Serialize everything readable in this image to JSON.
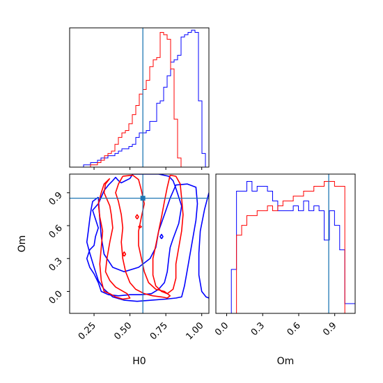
{
  "chart_data": [
    {
      "type": "histogram",
      "panel": "H0 marginal",
      "truth": 0.59,
      "xlim": [
        0.08,
        1.05
      ],
      "series": [
        {
          "color": "#0000ff",
          "values": [
            0,
            0,
            0,
            0,
            1,
            1,
            2,
            2,
            3,
            4,
            4,
            5,
            5,
            6,
            7,
            8,
            8,
            9,
            10,
            13,
            15,
            15,
            16,
            20,
            20,
            28,
            29,
            35,
            40,
            46,
            47,
            49,
            57,
            58,
            59,
            60,
            59,
            29,
            6,
            0
          ]
        },
        {
          "color": "#ff0000",
          "values": [
            0,
            0,
            0,
            0,
            0,
            0,
            1,
            1,
            2,
            3,
            5,
            6,
            7,
            10,
            13,
            15,
            16,
            19,
            23,
            27,
            32,
            34,
            38,
            44,
            47,
            48,
            59,
            58,
            56,
            43,
            21,
            4,
            0,
            0,
            0,
            0,
            0,
            0,
            0,
            0
          ]
        }
      ]
    },
    {
      "type": "contour",
      "panel": "H0 vs Om",
      "xlabel": "H0",
      "ylabel": "Om",
      "xlim": [
        0.08,
        1.05
      ],
      "ylim": [
        -0.2,
        1.07
      ],
      "xticks": [
        "0.25",
        "0.50",
        "0.75",
        "1.00"
      ],
      "yticks": [
        "0.0",
        "0.3",
        "0.6",
        "0.9"
      ],
      "truth": {
        "H0": 0.59,
        "Om": 0.85
      },
      "series": [
        {
          "color": "#0000ff",
          "contours": [
            [
              [
                0.52,
                1.07
              ],
              [
                0.5,
                1.03
              ],
              [
                0.47,
                1.01
              ],
              [
                0.44,
                0.99
              ],
              [
                0.42,
                1.01
              ],
              [
                0.4,
                1.04
              ],
              [
                0.38,
                1.01
              ],
              [
                0.35,
                0.97
              ],
              [
                0.32,
                0.92
              ],
              [
                0.3,
                0.86
              ],
              [
                0.28,
                0.8
              ],
              [
                0.24,
                0.74
              ],
              [
                0.26,
                0.66
              ],
              [
                0.28,
                0.58
              ],
              [
                0.26,
                0.5
              ],
              [
                0.25,
                0.42
              ],
              [
                0.22,
                0.38
              ],
              [
                0.2,
                0.3
              ],
              [
                0.22,
                0.22
              ],
              [
                0.25,
                0.16
              ],
              [
                0.28,
                0.08
              ],
              [
                0.3,
                0.0
              ],
              [
                0.35,
                -0.03
              ],
              [
                0.42,
                -0.04
              ],
              [
                0.5,
                -0.03
              ],
              [
                0.58,
                -0.03
              ],
              [
                0.65,
                -0.02
              ],
              [
                0.7,
                0.02
              ],
              [
                0.74,
                0.08
              ],
              [
                0.76,
                0.18
              ],
              [
                0.77,
                0.3
              ],
              [
                0.78,
                0.4
              ],
              [
                0.8,
                0.48
              ],
              [
                0.82,
                0.55
              ],
              [
                0.84,
                0.62
              ],
              [
                0.85,
                0.7
              ],
              [
                0.86,
                0.78
              ],
              [
                0.84,
                0.86
              ],
              [
                0.82,
                0.94
              ],
              [
                0.8,
                1.01
              ],
              [
                0.77,
                1.05
              ],
              [
                0.7,
                1.07
              ],
              [
                0.6,
                1.07
              ],
              [
                0.52,
                1.07
              ]
            ],
            [
              [
                0.28,
                0.86
              ],
              [
                0.24,
                0.82
              ],
              [
                0.23,
                0.75
              ],
              [
                0.22,
                0.66
              ],
              [
                0.21,
                0.55
              ],
              [
                0.2,
                0.45
              ],
              [
                0.22,
                0.35
              ],
              [
                0.25,
                0.22
              ],
              [
                0.28,
                0.1
              ],
              [
                0.32,
                0.02
              ],
              [
                0.38,
                -0.05
              ],
              [
                0.46,
                -0.08
              ],
              [
                0.55,
                -0.09
              ],
              [
                0.65,
                -0.08
              ],
              [
                0.75,
                -0.07
              ],
              [
                0.82,
                -0.06
              ],
              [
                0.86,
                -0.05
              ],
              [
                0.88,
                0.05
              ],
              [
                0.9,
                0.2
              ],
              [
                0.92,
                0.35
              ],
              [
                0.94,
                0.5
              ],
              [
                0.96,
                0.65
              ],
              [
                0.97,
                0.8
              ],
              [
                0.96,
                0.95
              ],
              [
                0.9,
                0.98
              ],
              [
                0.82,
                0.97
              ],
              [
                0.78,
                0.85
              ],
              [
                0.74,
                0.7
              ],
              [
                0.7,
                0.55
              ],
              [
                0.68,
                0.4
              ],
              [
                0.64,
                0.3
              ],
              [
                0.56,
                0.22
              ],
              [
                0.46,
                0.18
              ],
              [
                0.38,
                0.22
              ],
              [
                0.32,
                0.34
              ],
              [
                0.3,
                0.5
              ],
              [
                0.29,
                0.66
              ],
              [
                0.28,
                0.86
              ]
            ],
            [
              [
                1.05,
                0.9
              ],
              [
                1.02,
                0.75
              ],
              [
                0.99,
                0.55
              ],
              [
                0.98,
                0.35
              ],
              [
                0.98,
                0.15
              ],
              [
                1.0,
                0.0
              ],
              [
                1.03,
                -0.05
              ],
              [
                1.05,
                -0.06
              ]
            ],
            [
              [
                0.72,
                0.48
              ],
              [
                0.73,
                0.5
              ],
              [
                0.72,
                0.52
              ],
              [
                0.71,
                0.5
              ],
              [
                0.72,
                0.48
              ]
            ]
          ]
        },
        {
          "color": "#ff0000",
          "contours": [
            [
              [
                0.36,
                1.03
              ],
              [
                0.33,
                0.98
              ],
              [
                0.32,
                0.9
              ],
              [
                0.34,
                0.84
              ],
              [
                0.36,
                0.78
              ],
              [
                0.37,
                0.7
              ],
              [
                0.38,
                0.58
              ],
              [
                0.36,
                0.45
              ],
              [
                0.34,
                0.3
              ],
              [
                0.33,
                0.18
              ],
              [
                0.36,
                0.1
              ],
              [
                0.4,
                0.04
              ],
              [
                0.44,
                0.01
              ],
              [
                0.48,
                -0.02
              ],
              [
                0.5,
                -0.06
              ],
              [
                0.45,
                -0.07
              ],
              [
                0.4,
                -0.05
              ],
              [
                0.36,
                -0.02
              ],
              [
                0.32,
                0.0
              ],
              [
                0.3,
                0.1
              ],
              [
                0.29,
                0.25
              ],
              [
                0.3,
                0.4
              ],
              [
                0.31,
                0.55
              ],
              [
                0.29,
                0.68
              ],
              [
                0.28,
                0.8
              ],
              [
                0.3,
                0.9
              ],
              [
                0.32,
                0.98
              ],
              [
                0.36,
                1.03
              ]
            ],
            [
              [
                0.45,
                1.05
              ],
              [
                0.42,
                0.98
              ],
              [
                0.4,
                0.9
              ],
              [
                0.42,
                0.82
              ],
              [
                0.44,
                0.7
              ],
              [
                0.45,
                0.58
              ],
              [
                0.44,
                0.45
              ],
              [
                0.45,
                0.3
              ],
              [
                0.47,
                0.18
              ],
              [
                0.5,
                0.08
              ],
              [
                0.54,
                0.02
              ],
              [
                0.6,
                -0.02
              ],
              [
                0.66,
                -0.04
              ],
              [
                0.72,
                -0.05
              ],
              [
                0.76,
                -0.06
              ],
              [
                0.78,
                -0.04
              ],
              [
                0.74,
                0.0
              ],
              [
                0.68,
                0.02
              ],
              [
                0.63,
                0.08
              ],
              [
                0.6,
                0.18
              ],
              [
                0.58,
                0.3
              ],
              [
                0.56,
                0.42
              ],
              [
                0.56,
                0.55
              ],
              [
                0.58,
                0.68
              ],
              [
                0.6,
                0.8
              ],
              [
                0.58,
                0.92
              ],
              [
                0.56,
                1.02
              ],
              [
                0.52,
                1.06
              ],
              [
                0.45,
                1.05
              ]
            ],
            [
              [
                0.78,
                1.06
              ],
              [
                0.76,
                0.95
              ],
              [
                0.74,
                0.82
              ],
              [
                0.72,
                0.68
              ],
              [
                0.7,
                0.55
              ],
              [
                0.68,
                0.42
              ],
              [
                0.66,
                0.3
              ],
              [
                0.66,
                0.15
              ],
              [
                0.68,
                0.05
              ],
              [
                0.72,
                0.0
              ],
              [
                0.76,
                -0.02
              ],
              [
                0.8,
                0.02
              ],
              [
                0.82,
                0.12
              ],
              [
                0.82,
                0.25
              ],
              [
                0.84,
                0.4
              ],
              [
                0.86,
                0.55
              ],
              [
                0.87,
                0.7
              ],
              [
                0.86,
                0.85
              ],
              [
                0.85,
                0.98
              ],
              [
                0.82,
                1.05
              ],
              [
                0.78,
                1.06
              ]
            ],
            [
              [
                0.55,
                0.66
              ],
              [
                0.56,
                0.68
              ],
              [
                0.55,
                0.7
              ],
              [
                0.54,
                0.68
              ],
              [
                0.55,
                0.66
              ]
            ],
            [
              [
                0.46,
                0.32
              ],
              [
                0.47,
                0.34
              ],
              [
                0.46,
                0.36
              ],
              [
                0.45,
                0.34
              ],
              [
                0.46,
                0.32
              ]
            ],
            [
              [
                0.57,
                0.58
              ],
              [
                0.58,
                0.59
              ],
              [
                0.57,
                0.6
              ],
              [
                0.56,
                0.59
              ],
              [
                0.57,
                0.58
              ]
            ]
          ]
        }
      ]
    },
    {
      "type": "histogram",
      "panel": "Om marginal",
      "xlabel": "Om",
      "truth": 0.85,
      "xlim": [
        -0.09,
        1.07
      ],
      "xticks": [
        "0.0",
        "0.3",
        "0.6",
        "0.9"
      ],
      "series": [
        {
          "color": "#0000ff",
          "values": [
            0,
            0,
            0,
            9,
            25,
            25,
            27,
            25,
            26,
            26,
            25,
            23,
            21,
            21,
            21,
            22,
            21,
            23,
            21,
            22,
            21,
            15,
            21,
            18,
            13,
            2,
            2
          ]
        },
        {
          "color": "#ff0000",
          "values": [
            0,
            0,
            0,
            0,
            16,
            18,
            20,
            20,
            21,
            21,
            22,
            21,
            22,
            23,
            23,
            24,
            24,
            25,
            25,
            26,
            26,
            27,
            27,
            26,
            26,
            0,
            0
          ]
        }
      ]
    }
  ]
}
